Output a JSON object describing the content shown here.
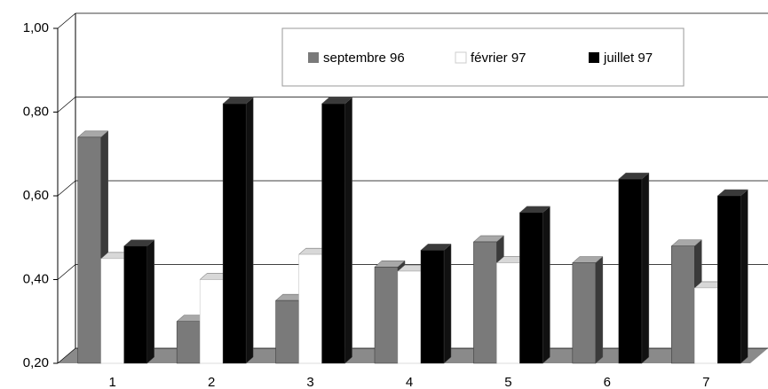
{
  "chart_data": {
    "type": "bar3d",
    "categories": [
      "1",
      "2",
      "3",
      "4",
      "5",
      "6",
      "7"
    ],
    "series": [
      {
        "name": "septembre 96",
        "color": "#7a7a7a",
        "values": [
          0.74,
          0.3,
          0.35,
          0.43,
          0.49,
          0.44,
          0.48
        ]
      },
      {
        "name": "février 97",
        "color": "#ffffff",
        "values": [
          0.45,
          0.4,
          0.46,
          0.42,
          0.44,
          null,
          0.38
        ]
      },
      {
        "name": "juillet 97",
        "color": "#000000",
        "values": [
          0.48,
          0.82,
          0.82,
          0.47,
          0.56,
          0.64,
          0.6
        ]
      }
    ],
    "ylim": [
      0.2,
      1.0
    ],
    "yticks": [
      {
        "value": 0.2,
        "label": "0,20"
      },
      {
        "value": 0.4,
        "label": "0,40"
      },
      {
        "value": 0.6,
        "label": "0,60"
      },
      {
        "value": 0.8,
        "label": "0,80"
      },
      {
        "value": 1.0,
        "label": "1,00"
      }
    ],
    "grid": true
  }
}
